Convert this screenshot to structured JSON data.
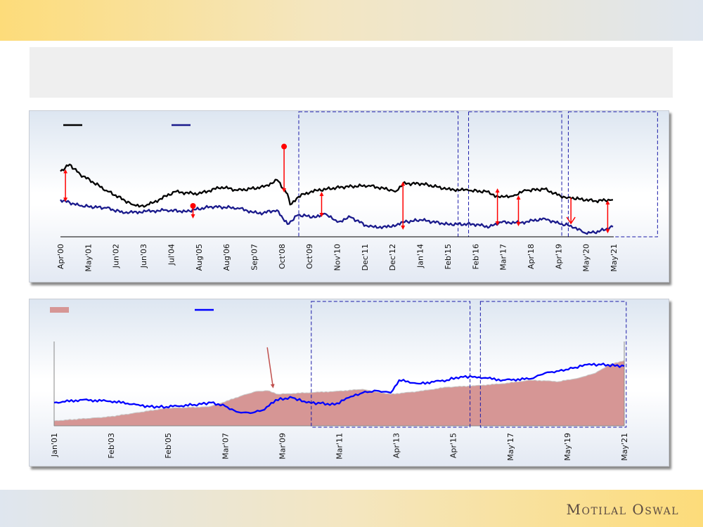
{
  "brand": {
    "logo_text": "Motilal Oswal"
  },
  "colors": {
    "black_line": "#000000",
    "navy_line": "#1a1a8c",
    "blue_line": "#0000ff",
    "area_fill": "#d69695",
    "arrow": "#ff0000",
    "box_dash": "#1a1aa8"
  },
  "chart_data": [
    {
      "type": "line",
      "title": "",
      "xlabel": "",
      "ylabel": "",
      "x_unit": "year",
      "xlim": [
        2000.25,
        2021.33
      ],
      "ylim": [
        0,
        100
      ],
      "grid": false,
      "legend": {
        "placement": "top-left",
        "entries": [
          {
            "series": 0,
            "label": ""
          },
          {
            "series": 1,
            "label": ""
          }
        ]
      },
      "tick_labels": [
        "Apr'00",
        "May'01",
        "Jun'02",
        "Jun'03",
        "Jul'04",
        "Aug'05",
        "Aug'06",
        "Sep'07",
        "Oct'08",
        "Oct'09",
        "Nov'10",
        "Dec'11",
        "Dec'12",
        "Jan'14",
        "Feb'15",
        "Feb'16",
        "Mar'17",
        "Apr'18",
        "Apr'19",
        "May'20",
        "May'21"
      ],
      "series": [
        {
          "name": "",
          "color": "#000000",
          "x": [
            2000.25,
            2000.6,
            2001,
            2002,
            2003,
            2003.5,
            2004,
            2004.6,
            2005.5,
            2006.4,
            2007,
            2008,
            2008.5,
            2008.9,
            2009.0,
            2009.5,
            2010,
            2011,
            2012,
            2012.9,
            2013,
            2013.3,
            2014,
            2015,
            2015.8,
            2016.5,
            2017,
            2017.5,
            2018,
            2018.7,
            2019.3,
            2019.6,
            2020,
            2020.6,
            2021.3
          ],
          "y": [
            53,
            58.5,
            50.6,
            37.5,
            26,
            25,
            30,
            36.4,
            34.7,
            40.3,
            37.5,
            40.3,
            46,
            34.7,
            26,
            34.7,
            37.5,
            40.3,
            41.5,
            37.5,
            36.4,
            43,
            43,
            38.6,
            37.5,
            36.4,
            31.8,
            33,
            37.5,
            38.6,
            33,
            31.8,
            30.7,
            29,
            30
          ]
        },
        {
          "name": "",
          "color": "#1a1a8c",
          "x": [
            2000.25,
            2001,
            2002,
            2002.7,
            2003.5,
            2004.3,
            2005,
            2006,
            2007,
            2007.8,
            2008.5,
            2008.9,
            2009.3,
            2010,
            2010.3,
            2010.8,
            2011.3,
            2012,
            2012.8,
            2013.3,
            2014,
            2015,
            2016,
            2016.6,
            2017,
            2017.8,
            2018.7,
            2019.3,
            2019.7,
            2020.2,
            2020.6,
            2021.3
          ],
          "y": [
            30,
            25,
            23.3,
            19.3,
            20.5,
            21.6,
            20.5,
            24.4,
            23.3,
            18.8,
            21.6,
            10.2,
            17.6,
            15.9,
            18.8,
            11.9,
            15.9,
            8,
            8,
            11.9,
            13.6,
            10.2,
            10.2,
            8,
            11.9,
            11.4,
            14.8,
            10.2,
            9.1,
            3.4,
            3.4,
            8
          ]
        }
      ],
      "annotations": {
        "gap_arrows": [
          {
            "x": 2000.44,
            "from": 30,
            "to": 53,
            "style": "double"
          },
          {
            "x": 2005.3,
            "from": 25,
            "to": 16.5,
            "style": "dot-down"
          },
          {
            "x": 2008.77,
            "from": 73,
            "to": 37.5,
            "style": "dot-down"
          },
          {
            "x": 2010.2,
            "from": 34.7,
            "to": 17.6,
            "style": "double"
          },
          {
            "x": 2013.3,
            "from": 43,
            "to": 7.4,
            "style": "double"
          },
          {
            "x": 2016.9,
            "from": 37.5,
            "to": 10.8,
            "style": "double"
          },
          {
            "x": 2017.7,
            "from": 31.8,
            "to": 10.2,
            "style": "double"
          },
          {
            "x": 2019.7,
            "from": 31.8,
            "to": 10.8,
            "style": "open-down"
          },
          {
            "x": 2021.1,
            "from": 27.8,
            "to": 4.5,
            "style": "double"
          }
        ],
        "dashed_boxes": [
          {
            "x0": 2009.33,
            "x1": 2015.4,
            "color": "#1a1aa8"
          },
          {
            "x0": 2015.8,
            "x1": 2019.35,
            "color": "#1a1aa8"
          },
          {
            "x0": 2019.6,
            "x1": 2023.0,
            "color": "#1a1aa8"
          }
        ]
      }
    },
    {
      "type": "area",
      "title": "",
      "xlabel": "",
      "ylabel": "",
      "x_unit": "year",
      "xlim": [
        2001.0,
        2021.33
      ],
      "ylim": [
        0,
        100
      ],
      "grid": false,
      "legend": {
        "placement": "top-left",
        "entries": [
          {
            "series": 0,
            "label": ""
          },
          {
            "series": 1,
            "label": ""
          }
        ]
      },
      "tick_labels": [
        "Jan'01",
        "Feb'03",
        "Feb'05",
        "Mar'07",
        "Mar'09",
        "Mar'11",
        "Apr'13",
        "Apr'15",
        "May'17",
        "May'19",
        "May'21"
      ],
      "series": [
        {
          "name": "",
          "type": "area",
          "color": "#d69695",
          "x": [
            2001,
            2003,
            2005,
            2006.5,
            2007,
            2007.7,
            2008.2,
            2008.6,
            2009,
            2010,
            2011,
            2012,
            2012.5,
            2013,
            2014,
            2015,
            2016,
            2017,
            2018,
            2019,
            2019.7,
            2020.3,
            2020.8,
            2021.33
          ],
          "y": [
            5.8,
            10.8,
            20.8,
            22.5,
            27.5,
            35.8,
            40.8,
            41.7,
            37.5,
            39.2,
            40.8,
            43.3,
            40,
            37.5,
            40.8,
            45.8,
            47.5,
            50,
            54.2,
            52.5,
            56.7,
            62.5,
            72.5,
            77.5
          ]
        },
        {
          "name": "",
          "type": "line",
          "color": "#0000ff",
          "x": [
            2001,
            2002,
            2003,
            2004,
            2004.4,
            2005,
            2006,
            2006.6,
            2007.1,
            2007.5,
            2008,
            2008.5,
            2008.9,
            2009.5,
            2010,
            2010.5,
            2011,
            2011.5,
            2012,
            2012.5,
            2013,
            2013.3,
            2014,
            2015,
            2015.5,
            2016,
            2017,
            2018,
            2018.5,
            2019,
            2019.5,
            2020,
            2020.5,
            2021.33
          ],
          "y": [
            27.5,
            30.8,
            29.2,
            25,
            22.5,
            22.5,
            25,
            27.5,
            23.3,
            16.7,
            15,
            19.2,
            30.8,
            33.3,
            27.5,
            26.7,
            25,
            33.3,
            39.2,
            41.7,
            39.2,
            54.2,
            50,
            54.2,
            58.3,
            58.3,
            54.2,
            55.8,
            62.5,
            65,
            68.3,
            72.5,
            72.5,
            70.8
          ]
        }
      ],
      "annotations": {
        "pointer_arrow": {
          "x_from": 2008.6,
          "y_from": 93,
          "x_to": 2008.8,
          "y_to": 47
        },
        "dashed_boxes": [
          {
            "x0": 2010.17,
            "x1": 2015.83,
            "color": "#1a1aa8"
          },
          {
            "x0": 2016.2,
            "x1": 2021.4,
            "color": "#1a1aa8"
          }
        ]
      }
    }
  ]
}
